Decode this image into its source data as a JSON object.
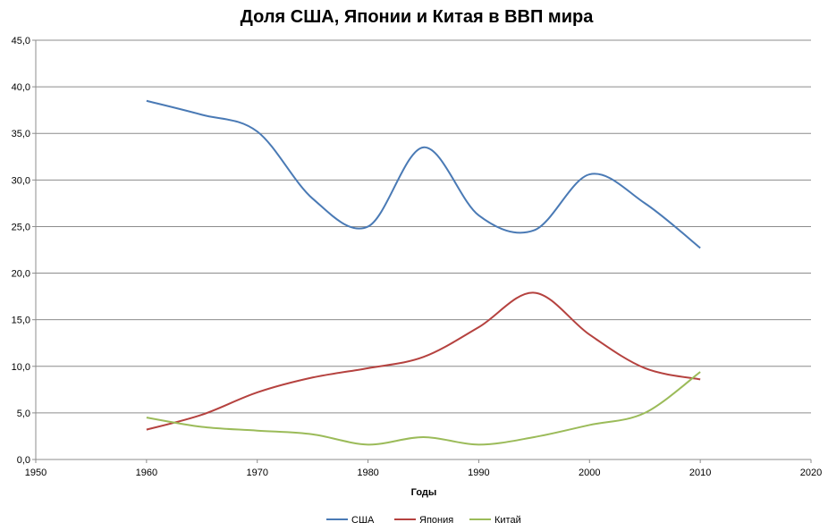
{
  "chart_data": {
    "type": "line",
    "title": "Доля США, Японии и Китая в ВВП мира",
    "xlabel": "Годы",
    "ylabel": "",
    "xlim": [
      1950,
      2020
    ],
    "ylim": [
      0,
      45
    ],
    "x_ticks": [
      "1950",
      "1960",
      "1970",
      "1980",
      "1990",
      "2000",
      "2010",
      "2020"
    ],
    "x_tick_values": [
      1950,
      1960,
      1970,
      1980,
      1990,
      2000,
      2010,
      2020
    ],
    "y_ticks": [
      "0,0",
      "5,0",
      "10,0",
      "15,0",
      "20,0",
      "25,0",
      "30,0",
      "35,0",
      "40,0",
      "45,0"
    ],
    "y_tick_values": [
      0,
      5,
      10,
      15,
      20,
      25,
      30,
      35,
      40,
      45
    ],
    "grid": true,
    "legend_position": "bottom",
    "series": [
      {
        "name": "США",
        "color": "#4a7ab5",
        "x": [
          1960,
          1965,
          1970,
          1975,
          1980,
          1985,
          1990,
          1995,
          2000,
          2005,
          2010
        ],
        "values": [
          38.5,
          37.0,
          35.2,
          28.0,
          25.0,
          33.5,
          26.2,
          24.6,
          30.6,
          27.5,
          22.7
        ]
      },
      {
        "name": "Япония",
        "color": "#b5423f",
        "x": [
          1960,
          1965,
          1970,
          1975,
          1980,
          1985,
          1990,
          1995,
          2000,
          2005,
          2010
        ],
        "values": [
          3.2,
          4.8,
          7.2,
          8.8,
          9.8,
          11.0,
          14.2,
          17.9,
          13.4,
          9.8,
          8.6
        ]
      },
      {
        "name": "Китай",
        "color": "#9bbb59",
        "x": [
          1960,
          1965,
          1970,
          1975,
          1980,
          1985,
          1990,
          1995,
          2000,
          2005,
          2010
        ],
        "values": [
          4.5,
          3.5,
          3.1,
          2.7,
          1.6,
          2.4,
          1.6,
          2.4,
          3.7,
          5.0,
          9.4
        ]
      }
    ]
  }
}
